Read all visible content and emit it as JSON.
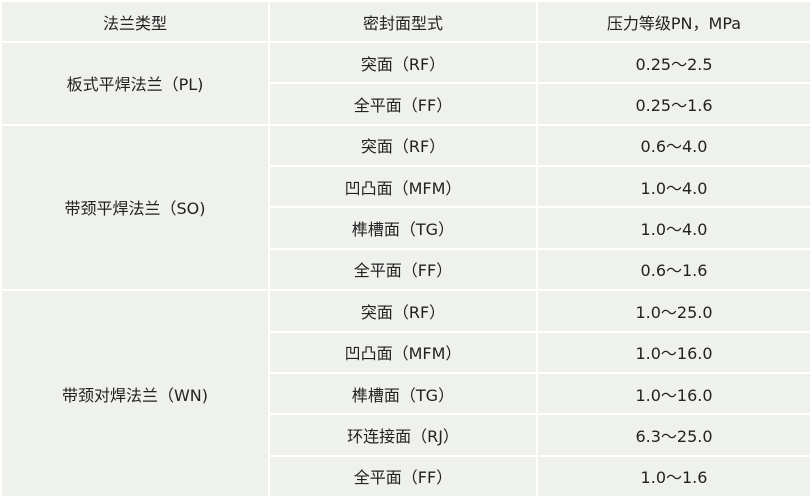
{
  "headers": [
    "法兰类型",
    "密封面型式",
    "压力等级PN，MPa"
  ],
  "groups": [
    {
      "type": "板式平焊法兰（PL)",
      "rows": [
        {
          "face": "突面（RF）",
          "pressure": "0.25～2.5"
        },
        {
          "face": "全平面（FF）",
          "pressure": "0.25～1.6"
        }
      ]
    },
    {
      "type": "带颈平焊法兰（SO)",
      "rows": [
        {
          "face": "突面（RF）",
          "pressure": "0.6～4.0"
        },
        {
          "face": "凹凸面（MFM）",
          "pressure": "1.0～4.0"
        },
        {
          "face": "榫槽面（TG）",
          "pressure": "1.0～4.0"
        },
        {
          "face": "全平面（FF）",
          "pressure": "0.6～1.6"
        }
      ]
    },
    {
      "type": "带颈对焊法兰（WN)",
      "rows": [
        {
          "face": "突面（RF）",
          "pressure": "1.0～25.0"
        },
        {
          "face": "凹凸面（MFM）",
          "pressure": "1.0～16.0"
        },
        {
          "face": "榫槽面（TG）",
          "pressure": "1.0～16.0"
        },
        {
          "face": "环连接面（RJ）",
          "pressure": "6.3～25.0"
        },
        {
          "face": "全平面（FF）",
          "pressure": "1.0～1.6"
        }
      ]
    }
  ]
}
